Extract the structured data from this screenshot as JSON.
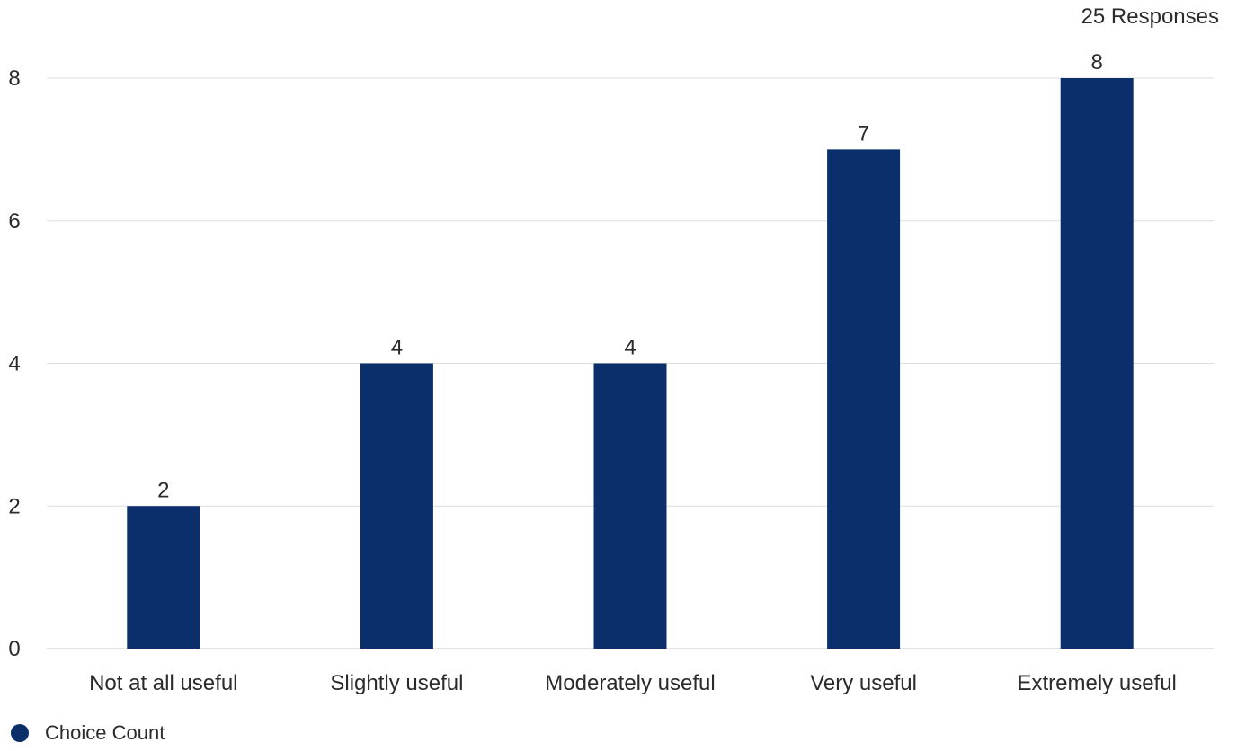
{
  "responses_label": "25 Responses",
  "chart_data": {
    "type": "bar",
    "categories": [
      "Not at all useful",
      "Slightly useful",
      "Moderately useful",
      "Very useful",
      "Extremely useful"
    ],
    "series": [
      {
        "name": "Choice Count",
        "values": [
          2,
          4,
          4,
          7,
          8
        ],
        "color": "#0a2f6b"
      }
    ],
    "ylim": [
      0,
      8
    ],
    "yticks": [
      0,
      2,
      4,
      6,
      8
    ],
    "grid": true,
    "data_labels": true,
    "legend_position": "bottom-left"
  }
}
